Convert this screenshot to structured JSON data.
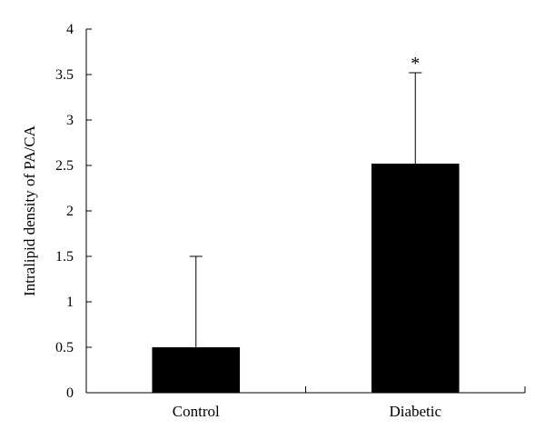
{
  "chart_data": {
    "type": "bar",
    "title": "",
    "xlabel": "",
    "ylabel": "Intralipid density of PA/CA",
    "categories": [
      "Control",
      "Diabetic"
    ],
    "values": [
      0.5,
      2.52
    ],
    "error_upper": [
      1.5,
      3.52
    ],
    "annotations": [
      "",
      "*"
    ],
    "ylim": [
      0,
      4
    ],
    "yticks": [
      0,
      0.5,
      1,
      1.5,
      2,
      2.5,
      3,
      3.5,
      4
    ],
    "ytick_labels": [
      "0",
      "0.5",
      "1",
      "1.5",
      "2",
      "2.5",
      "3",
      "3.5",
      "4"
    ],
    "bar_color": "#000000",
    "grid": false,
    "legend": "none"
  }
}
